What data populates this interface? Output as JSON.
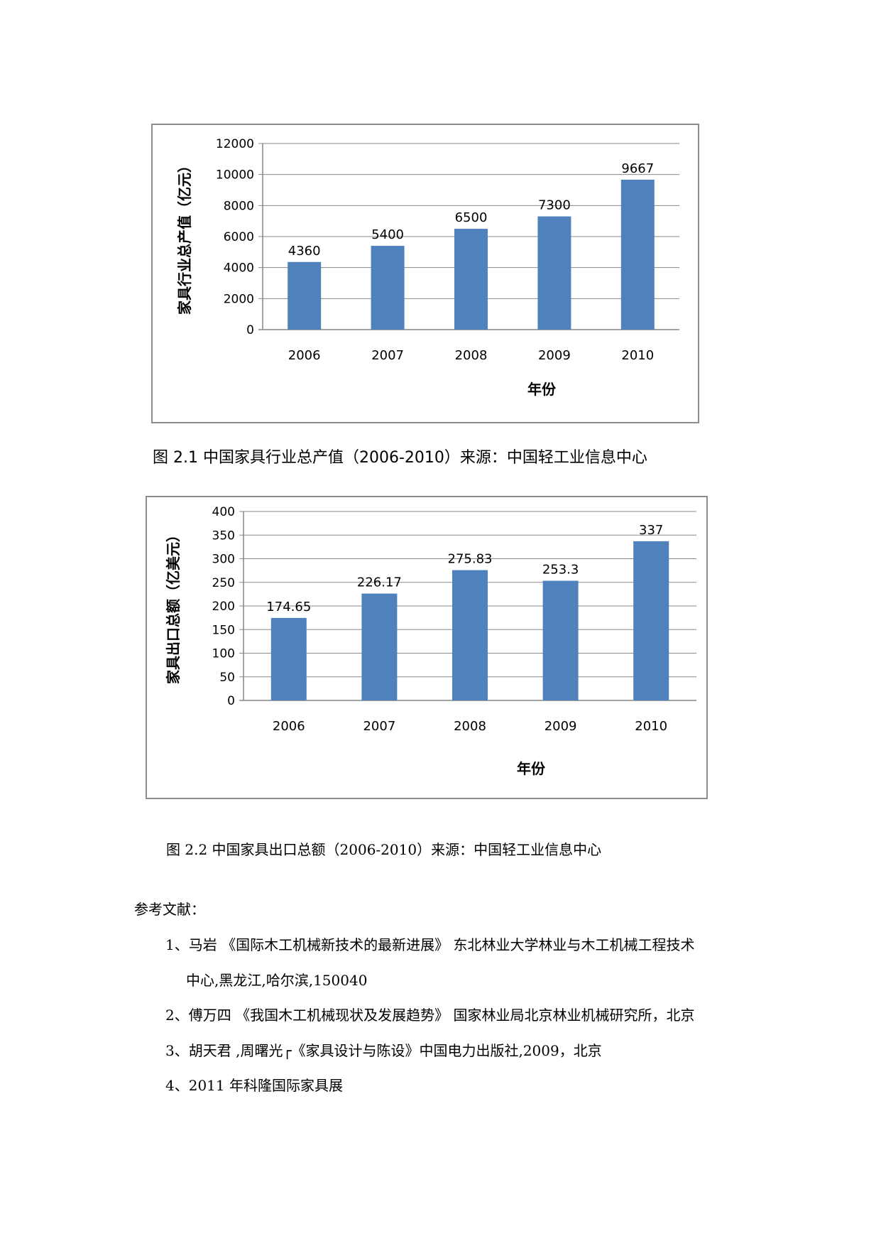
{
  "charts": [
    {
      "caption": "图 2.1  中国家具行业总产值（2006-2010）来源：中国轻工业信息中心",
      "chart_data": {
        "type": "bar",
        "categories": [
          "2006",
          "2007",
          "2008",
          "2009",
          "2010"
        ],
        "values": [
          4360,
          5400,
          6500,
          7300,
          9667
        ],
        "data_labels": [
          "4360",
          "5400",
          "6500",
          "7300",
          "9667"
        ],
        "xlabel": "年份",
        "ylabel": "家具行业总产值（亿元）",
        "ylim": [
          0,
          12000
        ],
        "yticks": [
          "0",
          "2000",
          "4000",
          "6000",
          "8000",
          "10000",
          "12000"
        ],
        "grid": true,
        "bar_color": "#4f81bd"
      }
    },
    {
      "caption": "图  2.2    中国家具出口总额（2006-2010）来源：中国轻工业信息中心",
      "chart_data": {
        "type": "bar",
        "categories": [
          "2006",
          "2007",
          "2008",
          "2009",
          "2010"
        ],
        "values": [
          174.65,
          226.17,
          275.83,
          253.3,
          337
        ],
        "data_labels": [
          "174.65",
          "226.17",
          "275.83",
          "253.3",
          "337"
        ],
        "xlabel": "年份",
        "ylabel": "家具出口总额（亿美元）",
        "ylim": [
          0,
          400
        ],
        "yticks": [
          "0",
          "50",
          "100",
          "150",
          "200",
          "250",
          "300",
          "350",
          "400"
        ],
        "grid": true,
        "bar_color": "#4f81bd"
      }
    }
  ],
  "references": {
    "heading": "参考文献：",
    "items": [
      "1、马岩 《国际木工机械新技术的最新进展》   东北林业大学林业与木工机械工程技术",
      "中心,黑龙江,哈尔滨,150040",
      "2、傅万四 《我国木工机械现状及发展趋势》 国家林业局北京林业机械研究所，北京",
      "3、胡天君 ,周曙光┌《家具设计与陈设》中国电力出版社,2009，北京",
      "4、2011 年科隆国际家具展"
    ]
  }
}
